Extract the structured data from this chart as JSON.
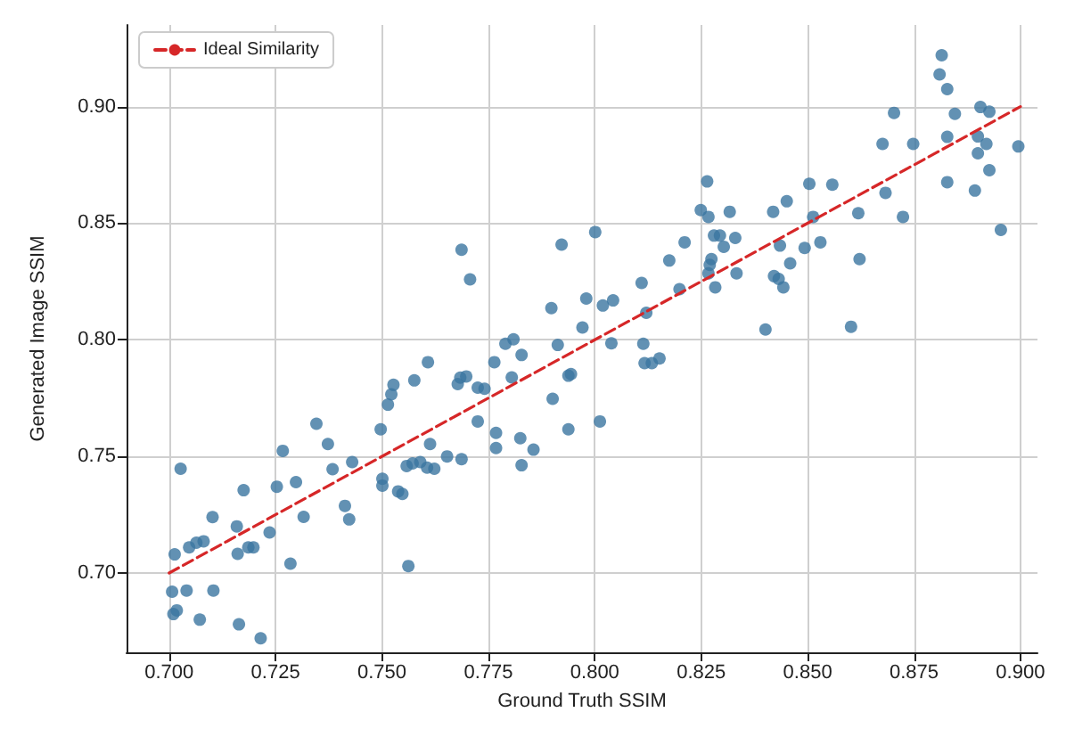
{
  "chart_data": {
    "type": "scatter",
    "xlabel": "Ground Truth SSIM",
    "ylabel": "Generated Image SSIM",
    "xlim": [
      0.69,
      0.904
    ],
    "ylim": [
      0.666,
      0.935
    ],
    "xticks": [
      {
        "value": 0.7,
        "label": "0.700"
      },
      {
        "value": 0.725,
        "label": "0.725"
      },
      {
        "value": 0.75,
        "label": "0.750"
      },
      {
        "value": 0.775,
        "label": "0.775"
      },
      {
        "value": 0.8,
        "label": "0.800"
      },
      {
        "value": 0.825,
        "label": "0.825"
      },
      {
        "value": 0.85,
        "label": "0.850"
      },
      {
        "value": 0.875,
        "label": "0.875"
      },
      {
        "value": 0.9,
        "label": "0.900"
      }
    ],
    "yticks": [
      {
        "value": 0.7,
        "label": "0.70"
      },
      {
        "value": 0.75,
        "label": "0.75"
      },
      {
        "value": 0.8,
        "label": "0.80"
      },
      {
        "value": 0.85,
        "label": "0.85"
      },
      {
        "value": 0.9,
        "label": "0.90"
      }
    ],
    "grid": true,
    "legend": "top left",
    "marker": "circle",
    "series": [
      {
        "color": "#3b76a0",
        "x": [
          0.7027,
          0.7013,
          0.7007,
          0.7041,
          0.701,
          0.7018,
          0.7047,
          0.7081,
          0.7064,
          0.7104,
          0.7072,
          0.7102,
          0.7159,
          0.7175,
          0.7161,
          0.7186,
          0.7198,
          0.7164,
          0.7215,
          0.7236,
          0.7253,
          0.7285,
          0.7298,
          0.7267,
          0.7316,
          0.7346,
          0.7373,
          0.7384,
          0.743,
          0.7413,
          0.7423,
          0.7497,
          0.7501,
          0.7501,
          0.7538,
          0.7548,
          0.7562,
          0.7572,
          0.759,
          0.7687,
          0.7707,
          0.7922,
          0.8001,
          0.8175,
          0.7898,
          0.798,
          0.8019,
          0.8043,
          0.7971,
          0.811,
          0.8121,
          0.8039,
          0.8114,
          0.8117,
          0.8134,
          0.8152,
          0.7913,
          0.779,
          0.7809,
          0.7828,
          0.7764,
          0.7805,
          0.7938,
          0.7944,
          0.7901,
          0.7938,
          0.8012,
          0.7856,
          0.7825,
          0.7768,
          0.7768,
          0.7828,
          0.7725,
          0.7684,
          0.7698,
          0.7678,
          0.7725,
          0.7741,
          0.7608,
          0.7576,
          0.7527,
          0.7522,
          0.7514,
          0.7613,
          0.7653,
          0.7687,
          0.7558,
          0.7606,
          0.7623,
          0.8815,
          0.881,
          0.8828,
          0.8703,
          0.8846,
          0.8906,
          0.8927,
          0.8676,
          0.8748,
          0.8828,
          0.89,
          0.892,
          0.89,
          0.8995,
          0.8927,
          0.8828,
          0.8893,
          0.8954,
          0.8683,
          0.8724,
          0.8504,
          0.8558,
          0.8619,
          0.8622,
          0.8602,
          0.8401,
          0.8451,
          0.8419,
          0.8513,
          0.853,
          0.8493,
          0.8435,
          0.8459,
          0.8421,
          0.8432,
          0.8443,
          0.8264,
          0.8249,
          0.8267,
          0.8317,
          0.828,
          0.8294,
          0.833,
          0.8303,
          0.8274,
          0.827,
          0.8267,
          0.8333,
          0.8283,
          0.8211,
          0.8199
        ],
        "values": [
          0.7447,
          0.708,
          0.692,
          0.6925,
          0.6824,
          0.684,
          0.711,
          0.7136,
          0.713,
          0.6925,
          0.68,
          0.724,
          0.72,
          0.7355,
          0.7082,
          0.711,
          0.711,
          0.678,
          0.672,
          0.7174,
          0.737,
          0.704,
          0.739,
          0.7524,
          0.7241,
          0.764,
          0.7553,
          0.7445,
          0.7476,
          0.7288,
          0.723,
          0.7616,
          0.7404,
          0.7375,
          0.735,
          0.7339,
          0.703,
          0.747,
          0.7476,
          0.8386,
          0.8259,
          0.8408,
          0.8462,
          0.834,
          0.8136,
          0.8177,
          0.8147,
          0.8169,
          0.8053,
          0.8244,
          0.8116,
          0.7985,
          0.7983,
          0.79,
          0.79,
          0.792,
          0.7978,
          0.7983,
          0.8002,
          0.7935,
          0.7904,
          0.7839,
          0.7846,
          0.7853,
          0.7747,
          0.7616,
          0.765,
          0.7529,
          0.7578,
          0.7601,
          0.7536,
          0.7462,
          0.765,
          0.7838,
          0.7843,
          0.781,
          0.7795,
          0.779,
          0.7904,
          0.7826,
          0.7807,
          0.7766,
          0.7722,
          0.7553,
          0.75,
          0.7488,
          0.7459,
          0.7452,
          0.7447,
          0.922,
          0.9138,
          0.9075,
          0.8973,
          0.8969,
          0.8998,
          0.8978,
          0.884,
          0.884,
          0.887,
          0.8872,
          0.884,
          0.88,
          0.8829,
          0.8727,
          0.8676,
          0.864,
          0.8471,
          0.863,
          0.8527,
          0.8669,
          0.8665,
          0.8543,
          0.8346,
          0.8056,
          0.8044,
          0.8594,
          0.8549,
          0.8527,
          0.8418,
          0.8394,
          0.8404,
          0.8328,
          0.8273,
          0.8261,
          0.8225,
          0.8679,
          0.8556,
          0.8527,
          0.8549,
          0.8447,
          0.8447,
          0.8437,
          0.8399,
          0.8346,
          0.8321,
          0.8285,
          0.8285,
          0.8225,
          0.8418,
          0.8217
        ]
      },
      {
        "type": "line",
        "name": "Ideal Similarity",
        "color": "#d62728",
        "line_style": "dashed",
        "marker": "none",
        "x": [
          0.7,
          0.9
        ],
        "values": [
          0.7,
          0.9
        ]
      }
    ]
  }
}
